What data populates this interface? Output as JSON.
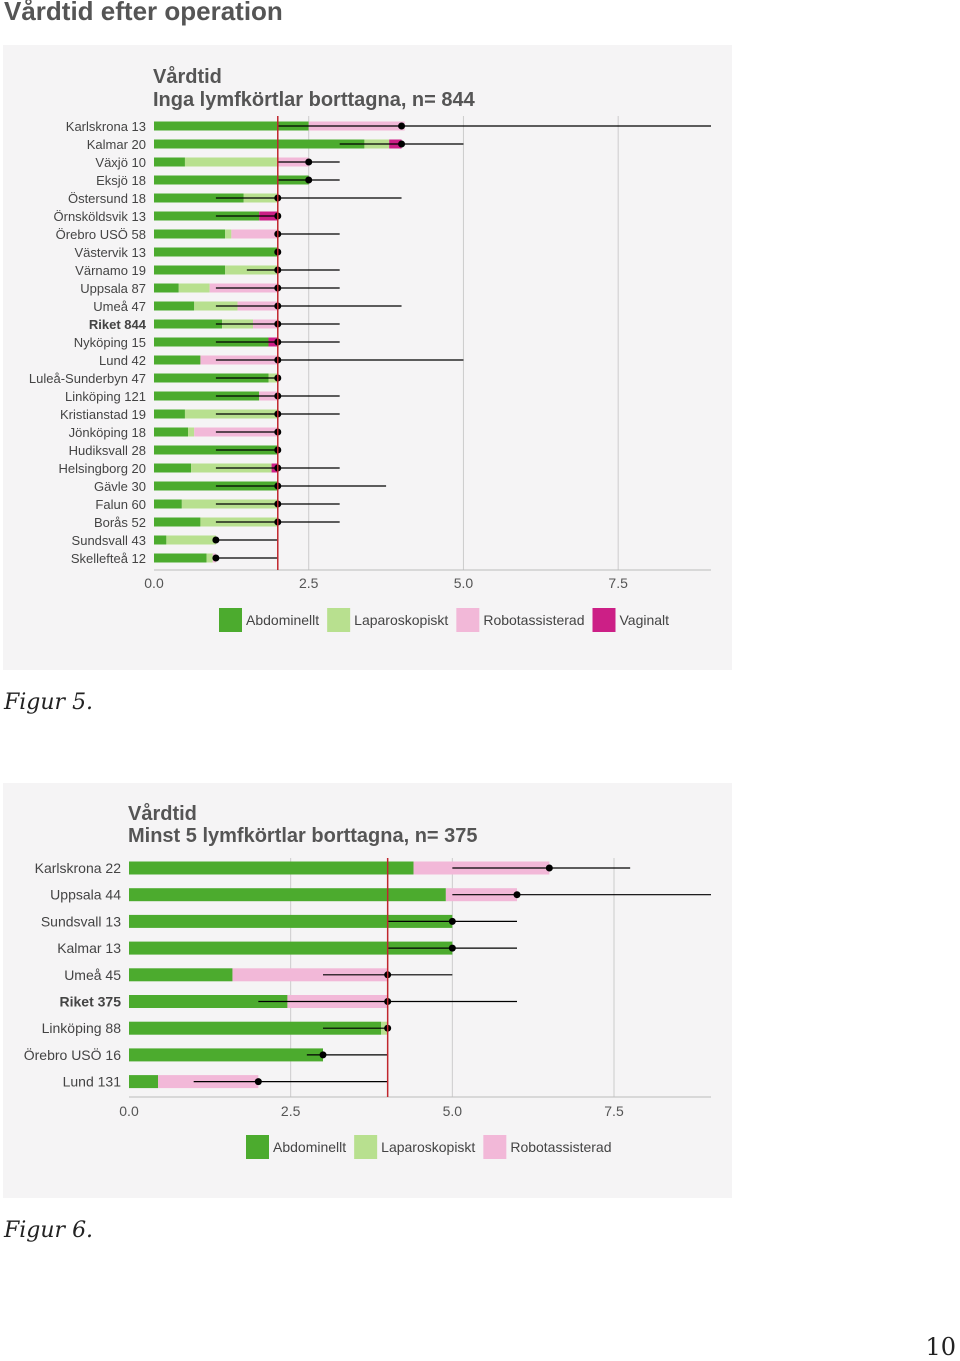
{
  "page": {
    "heading": "Vårdtid efter operation",
    "page_number": "10",
    "colors": {
      "abdominal": "#4cab2e",
      "laparoscopic": "#b8e08f",
      "robotic": "#f2b8d8",
      "vaginal": "#cc1f86",
      "reference_line": "#c0262d",
      "panel_bg": "#f5f4f5",
      "grid": "#cccccc"
    }
  },
  "chart_data": [
    {
      "type": "bar",
      "caption": "Figur 5.",
      "title": "Vårdtid",
      "subtitle": "Inga lymfkörtlar borttagna, n= 844",
      "xlim": [
        0,
        9
      ],
      "xticks": [
        "0.0",
        "2.5",
        "5.0",
        "7.5"
      ],
      "xtick_values": [
        0,
        2.5,
        5,
        7.5
      ],
      "grid": true,
      "legend_position": "bottom",
      "reference_value": 2,
      "legend": [
        {
          "name": "Abdominellt",
          "color": "#4cab2e"
        },
        {
          "name": "Laparoskopiskt",
          "color": "#b8e08f"
        },
        {
          "name": "Robotassisterad",
          "color": "#f2b8d8"
        },
        {
          "name": "Vaginalt",
          "color": "#cc1f86"
        }
      ],
      "rows": [
        {
          "label": "Karlskrona 13",
          "bold": false,
          "abd": 2.5,
          "lap": 0,
          "rob": 1.55,
          "vag": 0,
          "median": 4,
          "q1": 2,
          "q3": 9
        },
        {
          "label": "Kalmar 20",
          "bold": false,
          "abd": 3.4,
          "lap": 0.4,
          "rob": 0,
          "vag": 0.2,
          "median": 4,
          "q1": 3,
          "q3": 5
        },
        {
          "label": "Växjö 10",
          "bold": false,
          "abd": 0.5,
          "lap": 1.5,
          "rob": 0.5,
          "vag": 0,
          "median": 2.5,
          "q1": 2,
          "q3": 3
        },
        {
          "label": "Eksjö 18",
          "bold": false,
          "abd": 2.5,
          "lap": 0,
          "rob": 0,
          "vag": 0,
          "median": 2.5,
          "q1": 2,
          "q3": 3
        },
        {
          "label": "Östersund 18",
          "bold": false,
          "abd": 1.45,
          "lap": 0.55,
          "rob": 0,
          "vag": 0,
          "median": 2,
          "q1": 1,
          "q3": 4
        },
        {
          "label": "Örnsköldsvik 13",
          "bold": false,
          "abd": 1.7,
          "lap": 0,
          "rob": 0,
          "vag": 0.3,
          "median": 2,
          "q1": 1,
          "q3": 2
        },
        {
          "label": "Örebro USÖ 58",
          "bold": false,
          "abd": 1.15,
          "lap": 0.1,
          "rob": 0.75,
          "vag": 0,
          "median": 2,
          "q1": 2,
          "q3": 3
        },
        {
          "label": "Västervik 13",
          "bold": false,
          "abd": 2,
          "lap": 0,
          "rob": 0,
          "vag": 0,
          "median": 2,
          "q1": 2,
          "q3": 2
        },
        {
          "label": "Värnamo 19",
          "bold": false,
          "abd": 1.15,
          "lap": 0.85,
          "rob": 0,
          "vag": 0,
          "median": 2,
          "q1": 1.5,
          "q3": 3
        },
        {
          "label": "Uppsala 87",
          "bold": false,
          "abd": 0.4,
          "lap": 0.5,
          "rob": 1.1,
          "vag": 0,
          "median": 2,
          "q1": 1,
          "q3": 3
        },
        {
          "label": "Umeå 47",
          "bold": false,
          "abd": 0.65,
          "lap": 0.7,
          "rob": 0.65,
          "vag": 0,
          "median": 2,
          "q1": 1,
          "q3": 4
        },
        {
          "label": "Riket 844",
          "bold": true,
          "abd": 1.1,
          "lap": 0.5,
          "rob": 0.4,
          "vag": 0,
          "median": 2,
          "q1": 1,
          "q3": 3
        },
        {
          "label": "Nyköping 15",
          "bold": false,
          "abd": 1.85,
          "lap": 0,
          "rob": 0,
          "vag": 0.15,
          "median": 2,
          "q1": 1,
          "q3": 3
        },
        {
          "label": "Lund 42",
          "bold": false,
          "abd": 0.75,
          "lap": 0,
          "rob": 1.25,
          "vag": 0,
          "median": 2,
          "q1": 1,
          "q3": 5
        },
        {
          "label": "Luleå-Sunderbyn 47",
          "bold": false,
          "abd": 1.85,
          "lap": 0.15,
          "rob": 0,
          "vag": 0,
          "median": 2,
          "q1": 1,
          "q3": 2
        },
        {
          "label": "Linköping 121",
          "bold": false,
          "abd": 1.7,
          "lap": 0,
          "rob": 0.3,
          "vag": 0,
          "median": 2,
          "q1": 1,
          "q3": 3
        },
        {
          "label": "Kristianstad 19",
          "bold": false,
          "abd": 0.5,
          "lap": 1.5,
          "rob": 0,
          "vag": 0,
          "median": 2,
          "q1": 1,
          "q3": 3
        },
        {
          "label": "Jönköping 18",
          "bold": false,
          "abd": 0.55,
          "lap": 0.1,
          "rob": 1.35,
          "vag": 0,
          "median": 2,
          "q1": 1,
          "q3": 2
        },
        {
          "label": "Hudiksvall 28",
          "bold": false,
          "abd": 2,
          "lap": 0,
          "rob": 0,
          "vag": 0,
          "median": 2,
          "q1": 1,
          "q3": 2
        },
        {
          "label": "Helsingborg 20",
          "bold": false,
          "abd": 0.6,
          "lap": 1.3,
          "rob": 0,
          "vag": 0.1,
          "median": 2,
          "q1": 1,
          "q3": 3
        },
        {
          "label": "Gävle 30",
          "bold": false,
          "abd": 2,
          "lap": 0,
          "rob": 0,
          "vag": 0,
          "median": 2,
          "q1": 1,
          "q3": 3.75
        },
        {
          "label": "Falun 60",
          "bold": false,
          "abd": 0.45,
          "lap": 1.55,
          "rob": 0,
          "vag": 0,
          "median": 2,
          "q1": 1,
          "q3": 3
        },
        {
          "label": "Borås 52",
          "bold": false,
          "abd": 0.75,
          "lap": 1.25,
          "rob": 0,
          "vag": 0,
          "median": 2,
          "q1": 1,
          "q3": 3
        },
        {
          "label": "Sundsvall 43",
          "bold": false,
          "abd": 0.2,
          "lap": 0.8,
          "rob": 0,
          "vag": 0,
          "median": 1,
          "q1": 1,
          "q3": 2
        },
        {
          "label": "Skellefteå 12",
          "bold": false,
          "abd": 0.85,
          "lap": 0.1,
          "rob": 0.05,
          "vag": 0,
          "median": 1,
          "q1": 1,
          "q3": 2
        }
      ]
    },
    {
      "type": "bar",
      "caption": "Figur 6.",
      "title": "Vårdtid",
      "subtitle": "Minst 5 lymfkörtlar borttagna, n= 375",
      "xlim": [
        0,
        9
      ],
      "xticks": [
        "0.0",
        "2.5",
        "5.0",
        "7.5"
      ],
      "xtick_values": [
        0,
        2.5,
        5,
        7.5
      ],
      "grid": true,
      "legend_position": "bottom",
      "reference_value": 4,
      "legend": [
        {
          "name": "Abdominellt",
          "color": "#4cab2e"
        },
        {
          "name": "Laparoskopiskt",
          "color": "#b8e08f"
        },
        {
          "name": "Robotassisterad",
          "color": "#f2b8d8"
        }
      ],
      "rows": [
        {
          "label": "Karlskrona 22",
          "bold": false,
          "abd": 4.4,
          "lap": 0,
          "rob": 2.1,
          "vag": 0,
          "median": 6.5,
          "q1": 5,
          "q3": 7.75
        },
        {
          "label": "Uppsala 44",
          "bold": false,
          "abd": 4.9,
          "lap": 0,
          "rob": 1.1,
          "vag": 0,
          "median": 6,
          "q1": 5,
          "q3": 9
        },
        {
          "label": "Sundsvall 13",
          "bold": false,
          "abd": 5,
          "lap": 0,
          "rob": 0,
          "vag": 0,
          "median": 5,
          "q1": 4,
          "q3": 6
        },
        {
          "label": "Kalmar 13",
          "bold": false,
          "abd": 5,
          "lap": 0,
          "rob": 0,
          "vag": 0,
          "median": 5,
          "q1": 4,
          "q3": 6
        },
        {
          "label": "Umeå 45",
          "bold": false,
          "abd": 1.6,
          "lap": 0,
          "rob": 2.4,
          "vag": 0,
          "median": 4,
          "q1": 3,
          "q3": 5
        },
        {
          "label": "Riket 375",
          "bold": true,
          "abd": 2.45,
          "lap": 0,
          "rob": 1.55,
          "vag": 0,
          "median": 4,
          "q1": 2,
          "q3": 6
        },
        {
          "label": "Linköping 88",
          "bold": false,
          "abd": 3.9,
          "lap": 0.1,
          "rob": 0,
          "vag": 0,
          "median": 4,
          "q1": 3,
          "q3": 4
        },
        {
          "label": "Örebro USÖ 16",
          "bold": false,
          "abd": 3,
          "lap": 0,
          "rob": 0,
          "vag": 0,
          "median": 3,
          "q1": 2.75,
          "q3": 4
        },
        {
          "label": "Lund 131",
          "bold": false,
          "abd": 0.45,
          "lap": 0,
          "rob": 1.55,
          "vag": 0,
          "median": 2,
          "q1": 1,
          "q3": 4
        }
      ]
    }
  ]
}
